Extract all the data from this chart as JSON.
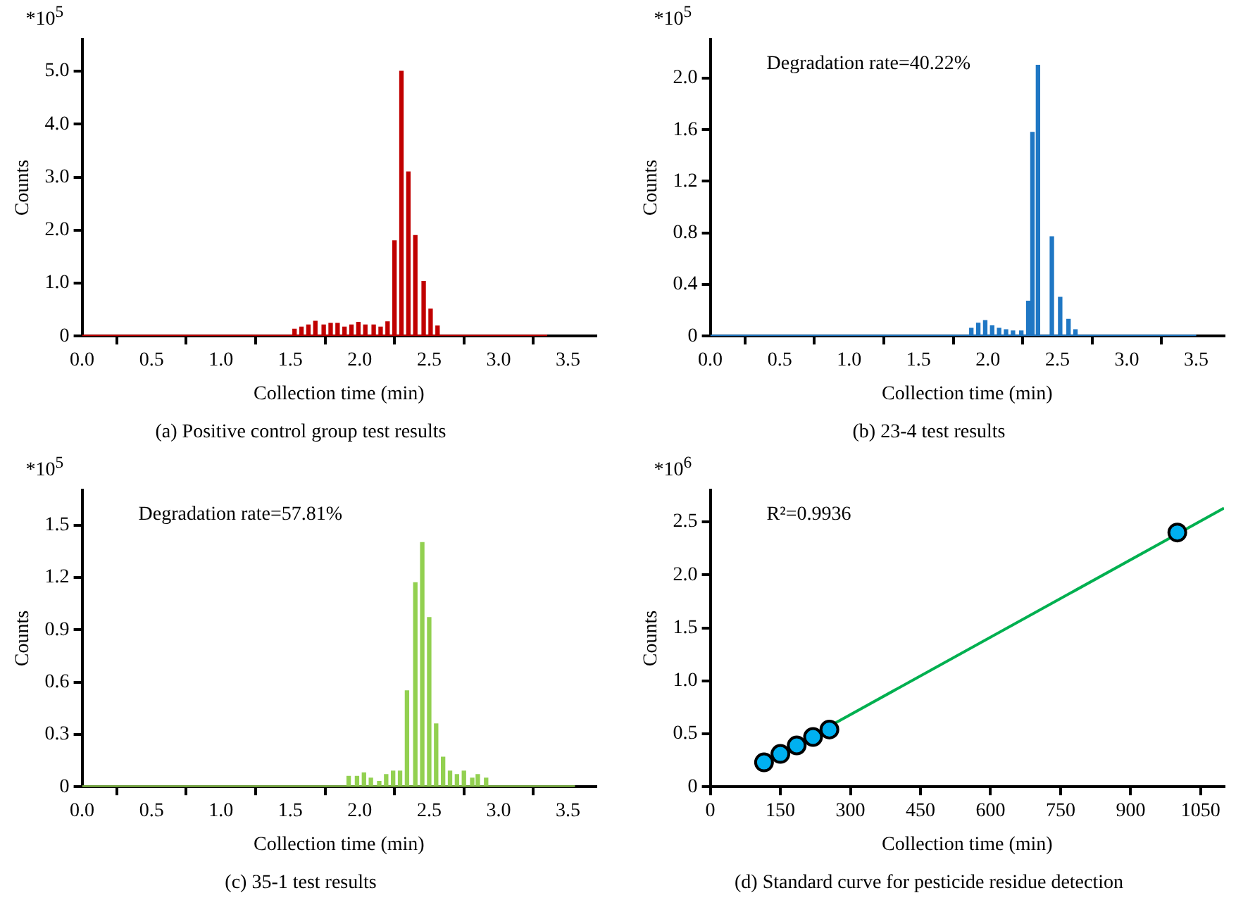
{
  "chart_data": [
    {
      "type": "bar",
      "title": "(a) Positive control group test results",
      "xlabel": "Collection time (min)",
      "ylabel": "Counts",
      "annotations": [
        "*10$^{5}$"
      ],
      "xlim": [
        0,
        3.7
      ],
      "ylim": [
        0,
        5.6
      ],
      "xticks": [
        {
          "value": 0,
          "label": "0.0"
        },
        {
          "value": 0.5,
          "label": "0.5"
        },
        {
          "value": 1,
          "label": "1.0"
        },
        {
          "value": 1.5,
          "label": "1.5"
        },
        {
          "value": 2,
          "label": "2.0"
        },
        {
          "value": 2.5,
          "label": "2.5"
        },
        {
          "value": 3,
          "label": "3.0"
        },
        {
          "value": 3.5,
          "label": "3.5"
        }
      ],
      "yticks": [
        0,
        {
          "value": 1,
          "label": "1.0"
        },
        {
          "value": 2,
          "label": "2.0"
        },
        {
          "value": 3,
          "label": "3.0"
        },
        {
          "value": 4,
          "label": "4.0"
        },
        {
          "value": 5,
          "label": "5.0"
        }
      ],
      "series": [
        {
          "type": "line",
          "color": "#c00000",
          "x": [
            0,
            3.35
          ],
          "values": [
            0,
            0
          ]
        },
        {
          "type": "bar",
          "color": "#c00000",
          "x": [
            1.53,
            1.58,
            1.63,
            1.68,
            1.74,
            1.79,
            1.84,
            1.89,
            1.94,
            1.99,
            2.04,
            2.1,
            2.15,
            2.2,
            2.25,
            2.3,
            2.35,
            2.4,
            2.46,
            2.51,
            2.56
          ],
          "values": [
            0.13,
            0.17,
            0.21,
            0.28,
            0.21,
            0.24,
            0.24,
            0.17,
            0.21,
            0.26,
            0.21,
            0.21,
            0.17,
            0.27,
            1.8,
            5.0,
            3.1,
            1.9,
            1.03,
            0.51,
            0.19
          ]
        }
      ]
    },
    {
      "type": "bar",
      "title": "(b) 23-4 test results",
      "xlabel": "Collection time (min)",
      "ylabel": "Counts",
      "annotations": [
        "*10$^{5}$",
        "Degradation rate=40.22%"
      ],
      "xlim": [
        0,
        3.7
      ],
      "ylim": [
        0,
        2.3
      ],
      "xticks": [
        {
          "value": 0,
          "label": "0.0"
        },
        {
          "value": 0.5,
          "label": "0.5"
        },
        {
          "value": 1,
          "label": "1.0"
        },
        {
          "value": 1.5,
          "label": "1.5"
        },
        {
          "value": 2,
          "label": "2.0"
        },
        {
          "value": 2.5,
          "label": "2.5"
        },
        {
          "value": 3,
          "label": "3.0"
        },
        {
          "value": 3.5,
          "label": "3.5"
        }
      ],
      "yticks": [
        0,
        0.4,
        0.8,
        1.2,
        1.6,
        {
          "value": 2,
          "label": "2.0"
        }
      ],
      "series": [
        {
          "type": "line",
          "color": "#1f77c4",
          "x": [
            0,
            3.5
          ],
          "values": [
            0,
            0
          ]
        },
        {
          "type": "bar",
          "color": "#1f77c4",
          "x": [
            1.88,
            1.93,
            1.98,
            2.03,
            2.08,
            2.13,
            2.18,
            2.24,
            2.29,
            2.32,
            2.36,
            2.46,
            2.52,
            2.58,
            2.63
          ],
          "values": [
            0.06,
            0.1,
            0.12,
            0.08,
            0.06,
            0.05,
            0.04,
            0.04,
            0.27,
            1.58,
            2.1,
            0.77,
            0.3,
            0.13,
            0.05
          ]
        }
      ]
    },
    {
      "type": "bar",
      "title": "(c) 35-1 test results",
      "xlabel": "Collection time (min)",
      "ylabel": "Counts",
      "annotations": [
        "*10$^{5}$",
        "Degradation rate=57.81%"
      ],
      "xlim": [
        0,
        3.7
      ],
      "ylim": [
        0,
        1.7
      ],
      "xticks": [
        {
          "value": 0,
          "label": "0.0"
        },
        {
          "value": 0.5,
          "label": "0.5"
        },
        {
          "value": 1,
          "label": "1.0"
        },
        {
          "value": 1.5,
          "label": "1.5"
        },
        {
          "value": 2,
          "label": "2.0"
        },
        {
          "value": 2.5,
          "label": "2.5"
        },
        {
          "value": 3,
          "label": "3.0"
        },
        {
          "value": 3.5,
          "label": "3.5"
        }
      ],
      "yticks": [
        0,
        0.3,
        0.6,
        0.9,
        1.2,
        1.5
      ],
      "series": [
        {
          "type": "line",
          "color": "#92d050",
          "x": [
            0,
            3.55
          ],
          "values": [
            0,
            0
          ]
        },
        {
          "type": "bar",
          "color": "#92d050",
          "x": [
            1.92,
            1.98,
            2.03,
            2.08,
            2.14,
            2.19,
            2.24,
            2.29,
            2.34,
            2.4,
            2.45,
            2.5,
            2.55,
            2.6,
            2.65,
            2.7,
            2.75,
            2.81,
            2.85,
            2.91
          ],
          "values": [
            0.06,
            0.06,
            0.08,
            0.05,
            0.03,
            0.07,
            0.09,
            0.09,
            0.55,
            1.17,
            1.4,
            0.97,
            0.36,
            0.17,
            0.09,
            0.07,
            0.09,
            0.05,
            0.07,
            0.05
          ]
        }
      ]
    },
    {
      "type": "scatter",
      "title": "(d) Standard curve for pesticide residue detection",
      "xlabel": "Collection time (min)",
      "ylabel": "Counts",
      "annotations": [
        "*10$^{6}$",
        "R²=0.9936"
      ],
      "xlim": [
        0,
        1100
      ],
      "ylim": [
        0,
        2.8
      ],
      "xticks": [
        0,
        150,
        300,
        450,
        600,
        750,
        900,
        1050
      ],
      "yticks": [
        0,
        0.5,
        {
          "value": 1,
          "label": "1.0"
        },
        1.5,
        {
          "value": 2,
          "label": "2.0"
        },
        2.5
      ],
      "series": [
        {
          "type": "scatter",
          "marker": "circle",
          "color": "#00b0f0",
          "x": [
            115,
            150,
            185,
            220,
            255,
            1000
          ],
          "values": [
            0.23,
            0.31,
            0.39,
            0.47,
            0.54,
            2.4
          ]
        },
        {
          "type": "line",
          "marker": "none",
          "color": "#00b050",
          "x": [
            115,
            1100
          ],
          "values": [
            0.23,
            2.63
          ]
        }
      ]
    }
  ]
}
